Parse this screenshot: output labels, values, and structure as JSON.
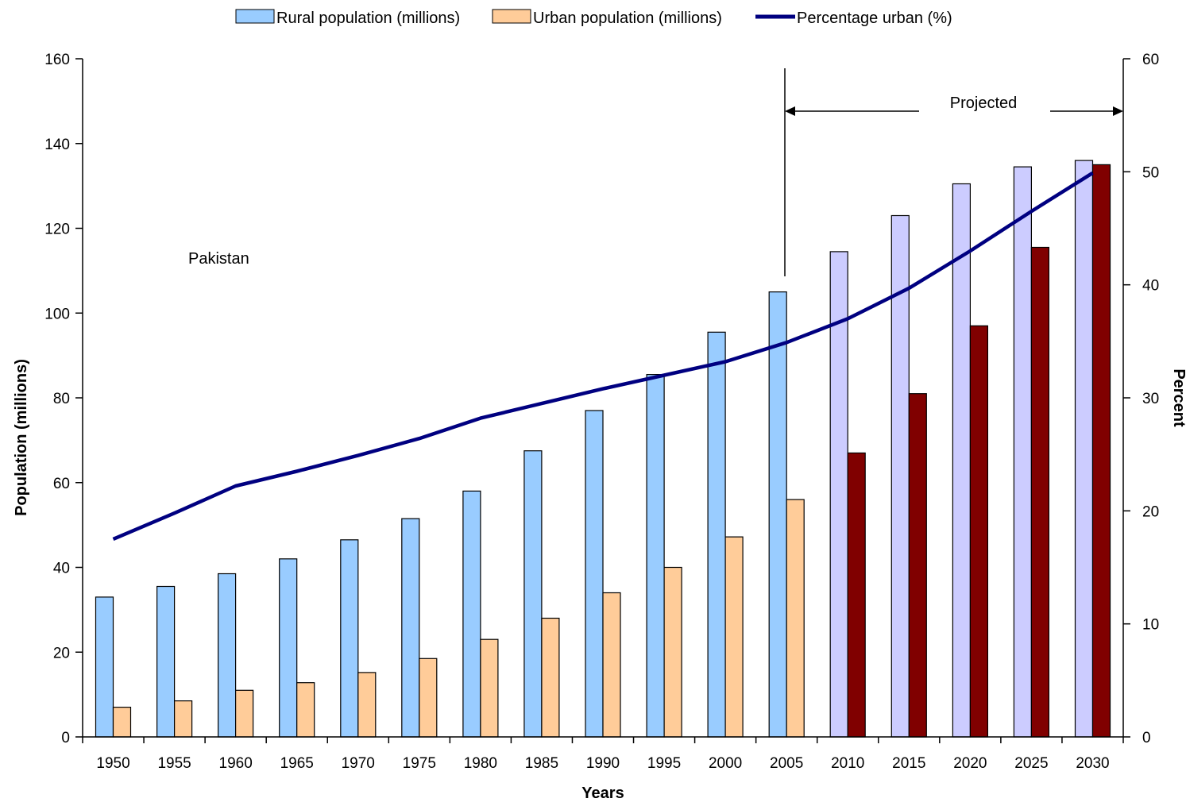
{
  "chart_data": {
    "type": "bar",
    "title": "",
    "categories": [
      "1950",
      "1955",
      "1960",
      "1965",
      "1970",
      "1975",
      "1980",
      "1985",
      "1990",
      "1995",
      "2000",
      "2005",
      "2010",
      "2015",
      "2020",
      "2025",
      "2030"
    ],
    "series": [
      {
        "name": "Rural population (millions)",
        "axis": "left",
        "kind": "bar",
        "values": [
          33,
          35.5,
          38.5,
          42,
          46.5,
          51.5,
          58,
          67.5,
          77,
          85.5,
          95.5,
          105,
          114.5,
          123,
          130.5,
          134.5,
          136
        ]
      },
      {
        "name": "Urban population (millions)",
        "axis": "left",
        "kind": "bar",
        "values": [
          7,
          8.5,
          11,
          12.8,
          15.2,
          18.5,
          23,
          28,
          34,
          40,
          47.2,
          56,
          67,
          81,
          97,
          115.5,
          135
        ]
      },
      {
        "name": "Percentage urban (%)",
        "axis": "right",
        "kind": "line",
        "values": [
          17.5,
          19.8,
          22.2,
          23.5,
          24.9,
          26.4,
          28.2,
          29.5,
          30.8,
          32.0,
          33.2,
          34.9,
          37.0,
          39.7,
          43.0,
          46.5,
          49.9
        ]
      }
    ],
    "projected_from": "2010",
    "colors": {
      "rural": "#99ccff",
      "urban": "#ffcc99",
      "rural_projected": "#ccccff",
      "urban_projected": "#800000",
      "line": "#000080"
    },
    "xlabel": "Years",
    "ylabel": "Population (millions)",
    "y2label": "Percent",
    "ylim": [
      0,
      160
    ],
    "yticks": [
      0,
      20,
      40,
      60,
      80,
      100,
      120,
      140,
      160
    ],
    "y2lim": [
      0,
      60
    ],
    "y2ticks": [
      0,
      10,
      20,
      30,
      40,
      50,
      60
    ],
    "annotations": {
      "country": "Pakistan",
      "projected": "Projected"
    },
    "legend_position": "top",
    "grid": false
  }
}
